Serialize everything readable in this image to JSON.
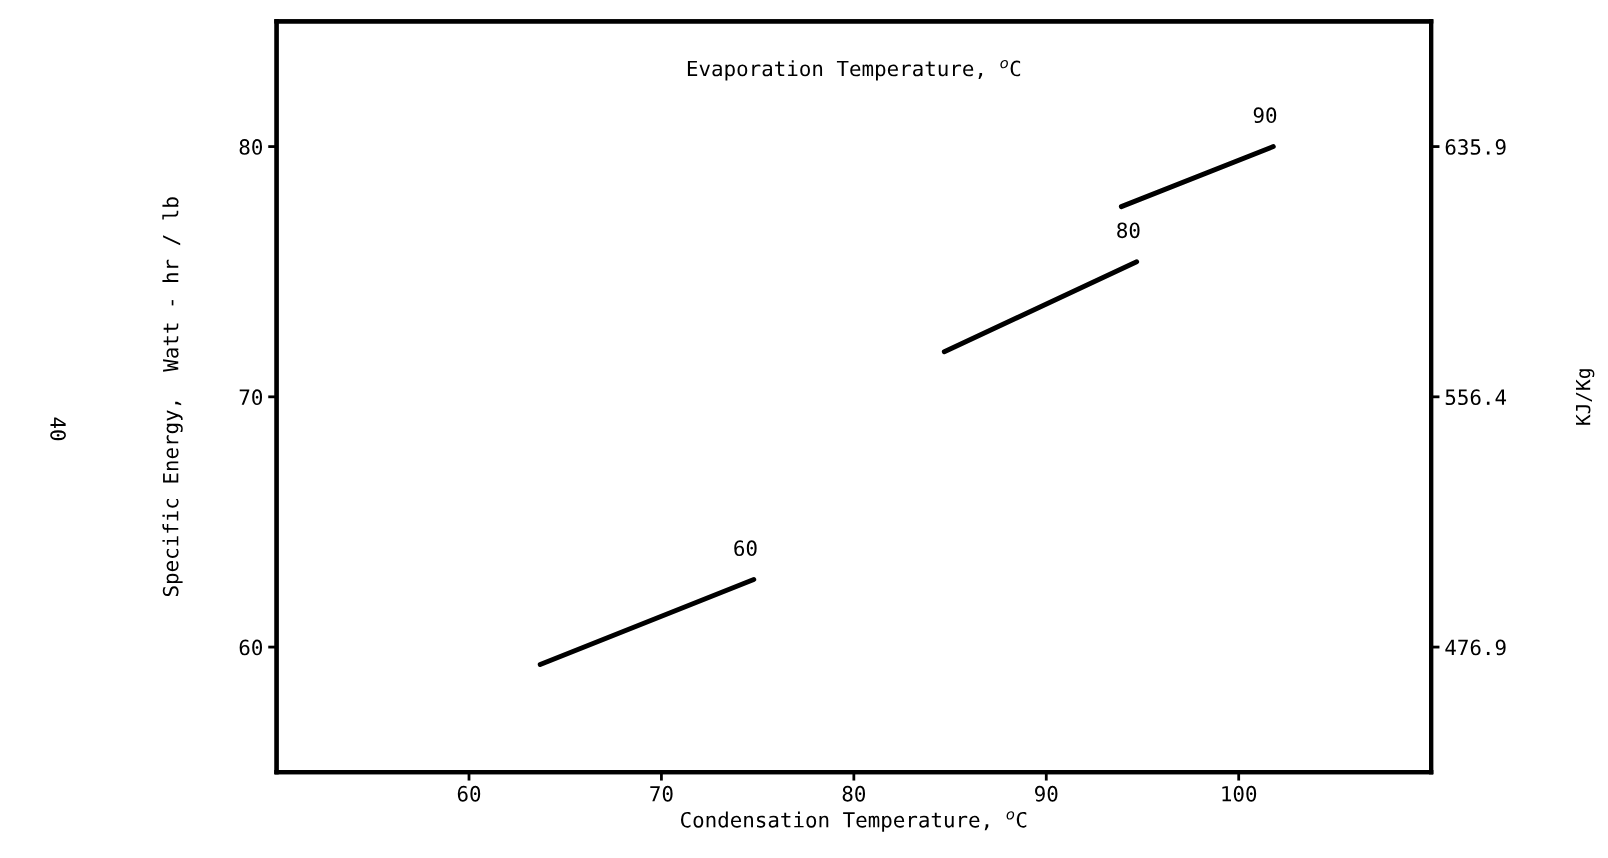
{
  "chart_data": {
    "type": "line",
    "xlabel": "Condensation Temperature, $^{o}$C",
    "ylabel": "Specific Energy,  Watt - hr / lb",
    "y2label": "KJ/Kg",
    "annotations": [
      "Evaporation Temperature, $^{o}$C",
      "40"
    ],
    "series": [
      {
        "name": "60",
        "color": "#000000",
        "x": [
          63.7,
          74.8
        ],
        "values": [
          59.3,
          62.7
        ]
      },
      {
        "name": "80",
        "color": "#000000",
        "x": [
          84.7,
          94.7
        ],
        "values": [
          71.8,
          75.4
        ]
      },
      {
        "name": "90",
        "color": "#000000",
        "x": [
          93.9,
          101.8
        ],
        "values": [
          77.6,
          80.0
        ]
      }
    ],
    "xlim": [
      50,
      110
    ],
    "xticks": [
      60,
      70,
      80,
      90,
      100
    ],
    "ylim": [
      55,
      85
    ],
    "yticks": [
      60,
      70,
      80
    ],
    "y2lim": [
      437.15,
      675.65
    ],
    "y2ticks": [
      476.9,
      556.4,
      635.9
    ],
    "grid": false,
    "legend": false,
    "marker": "none",
    "line_style": "solid"
  }
}
